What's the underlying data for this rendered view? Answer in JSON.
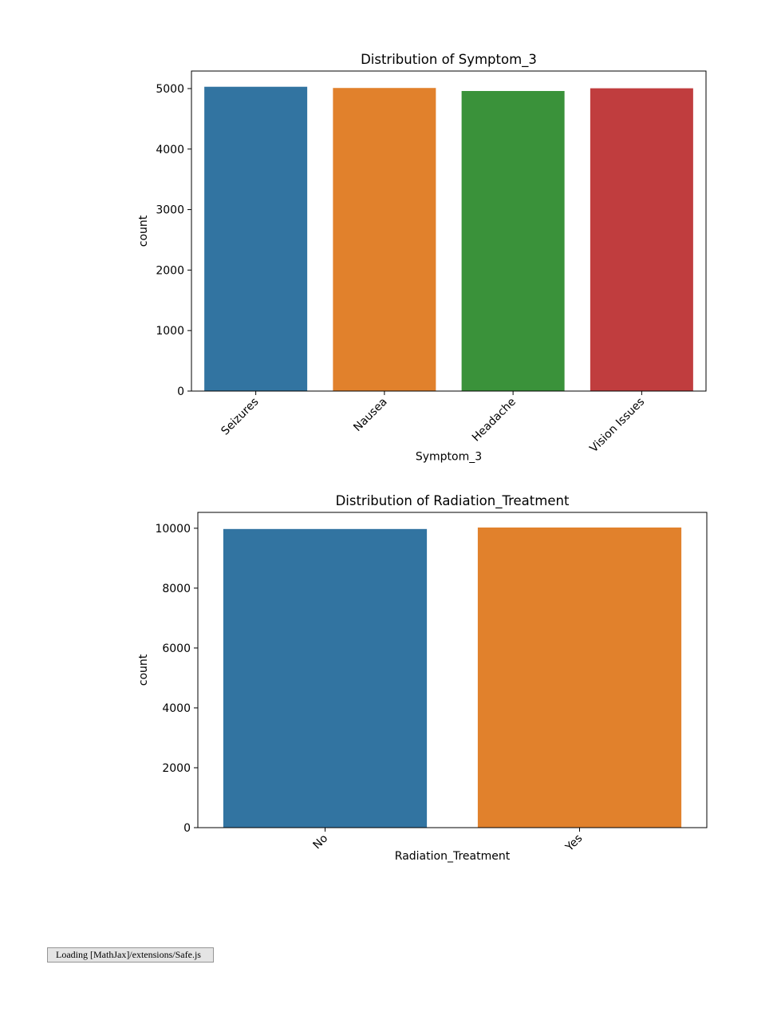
{
  "chart_data": [
    {
      "type": "bar",
      "title": "Distribution of Symptom_3",
      "xlabel": "Symptom_3",
      "ylabel": "count",
      "categories": [
        "Seizures",
        "Nausea",
        "Headache",
        "Vision Issues"
      ],
      "values": [
        5030,
        5010,
        4960,
        5005
      ],
      "colors": [
        "#3274a1",
        "#e1812c",
        "#3a923a",
        "#c03d3e"
      ],
      "ylim": [
        0,
        5290
      ],
      "yticks": [
        0,
        1000,
        2000,
        3000,
        4000,
        5000
      ],
      "grid": false
    },
    {
      "type": "bar",
      "title": "Distribution of Radiation_Treatment",
      "xlabel": "Radiation_Treatment",
      "ylabel": "count",
      "categories": [
        "No",
        "Yes"
      ],
      "values": [
        9975,
        10025
      ],
      "colors": [
        "#3274a1",
        "#e1812c"
      ],
      "ylim": [
        0,
        10530
      ],
      "yticks": [
        0,
        2000,
        4000,
        6000,
        8000,
        10000
      ],
      "grid": false
    }
  ],
  "status": {
    "text": "Loading [MathJax]/extensions/Safe.js"
  }
}
